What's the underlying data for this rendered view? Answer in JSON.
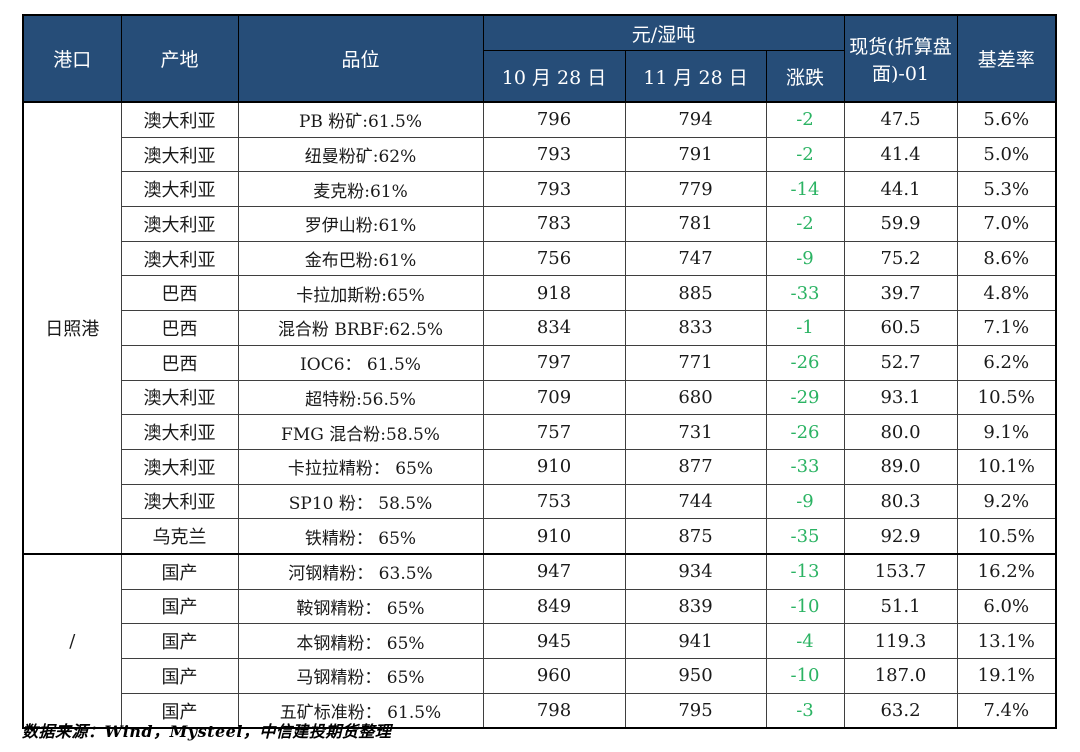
{
  "table": {
    "headers": {
      "port": "港口",
      "origin": "产地",
      "grade": "品位",
      "unit_group": "元/湿吨",
      "date_oct": "10 月 28 日",
      "date_nov": "11 月 28 日",
      "change": "涨跌",
      "spot": "现货(折算盘面)-01",
      "basis": "基差率"
    },
    "sections": [
      {
        "port": "日照港",
        "rows": [
          {
            "origin": "澳大利亚",
            "grade": "PB 粉矿:61.5%",
            "oct": "796",
            "nov": "794",
            "change": "-2",
            "spot": "47.5",
            "basis": "5.6%"
          },
          {
            "origin": "澳大利亚",
            "grade": "纽曼粉矿:62%",
            "oct": "793",
            "nov": "791",
            "change": "-2",
            "spot": "41.4",
            "basis": "5.0%"
          },
          {
            "origin": "澳大利亚",
            "grade": "麦克粉:61%",
            "oct": "793",
            "nov": "779",
            "change": "-14",
            "spot": "44.1",
            "basis": "5.3%"
          },
          {
            "origin": "澳大利亚",
            "grade": "罗伊山粉:61%",
            "oct": "783",
            "nov": "781",
            "change": "-2",
            "spot": "59.9",
            "basis": "7.0%"
          },
          {
            "origin": "澳大利亚",
            "grade": "金布巴粉:61%",
            "oct": "756",
            "nov": "747",
            "change": "-9",
            "spot": "75.2",
            "basis": "8.6%"
          },
          {
            "origin": "巴西",
            "grade": "卡拉加斯粉:65%",
            "oct": "918",
            "nov": "885",
            "change": "-33",
            "spot": "39.7",
            "basis": "4.8%"
          },
          {
            "origin": "巴西",
            "grade": "混合粉 BRBF:62.5%",
            "oct": "834",
            "nov": "833",
            "change": "-1",
            "spot": "60.5",
            "basis": "7.1%"
          },
          {
            "origin": "巴西",
            "grade": "IOC6： 61.5%",
            "oct": "797",
            "nov": "771",
            "change": "-26",
            "spot": "52.7",
            "basis": "6.2%"
          },
          {
            "origin": "澳大利亚",
            "grade": "超特粉:56.5%",
            "oct": "709",
            "nov": "680",
            "change": "-29",
            "spot": "93.1",
            "basis": "10.5%"
          },
          {
            "origin": "澳大利亚",
            "grade": "FMG 混合粉:58.5%",
            "oct": "757",
            "nov": "731",
            "change": "-26",
            "spot": "80.0",
            "basis": "9.1%"
          },
          {
            "origin": "澳大利亚",
            "grade": "卡拉拉精粉： 65%",
            "oct": "910",
            "nov": "877",
            "change": "-33",
            "spot": "89.0",
            "basis": "10.1%"
          },
          {
            "origin": "澳大利亚",
            "grade": "SP10 粉： 58.5%",
            "oct": "753",
            "nov": "744",
            "change": "-9",
            "spot": "80.3",
            "basis": "9.2%"
          },
          {
            "origin": "乌克兰",
            "grade": "铁精粉： 65%",
            "oct": "910",
            "nov": "875",
            "change": "-35",
            "spot": "92.9",
            "basis": "10.5%"
          }
        ]
      },
      {
        "port": "/",
        "rows": [
          {
            "origin": "国产",
            "grade": "河钢精粉： 63.5%",
            "oct": "947",
            "nov": "934",
            "change": "-13",
            "spot": "153.7",
            "basis": "16.2%"
          },
          {
            "origin": "国产",
            "grade": "鞍钢精粉： 65%",
            "oct": "849",
            "nov": "839",
            "change": "-10",
            "spot": "51.1",
            "basis": "6.0%"
          },
          {
            "origin": "国产",
            "grade": "本钢精粉： 65%",
            "oct": "945",
            "nov": "941",
            "change": "-4",
            "spot": "119.3",
            "basis": "13.1%"
          },
          {
            "origin": "国产",
            "grade": "马钢精粉： 65%",
            "oct": "960",
            "nov": "950",
            "change": "-10",
            "spot": "187.0",
            "basis": "19.1%"
          },
          {
            "origin": "国产",
            "grade": "五矿标准粉： 61.5%",
            "oct": "798",
            "nov": "795",
            "change": "-3",
            "spot": "63.2",
            "basis": "7.4%"
          }
        ]
      }
    ]
  },
  "footer": {
    "source": "数据来源：Wind，Mysteel，中信建投期货整理"
  },
  "colors": {
    "header_bg": "#264D78",
    "header_text": "#FFFFFF",
    "change_green": "#2BB363",
    "body_text": "#1A1A1A"
  }
}
